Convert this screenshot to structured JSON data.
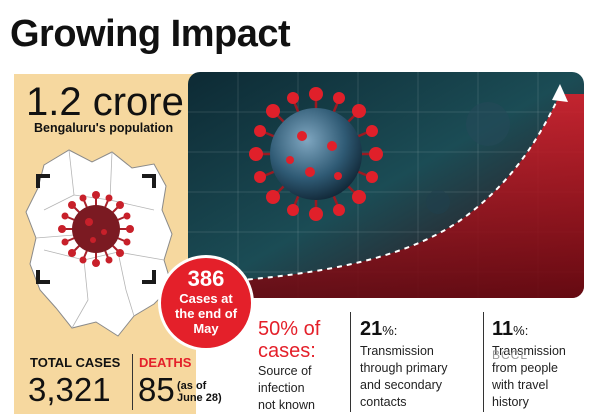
{
  "title": "Growing Impact",
  "population": {
    "value": "1.2 crore",
    "label": "Bengaluru's population"
  },
  "badge": {
    "number": "386",
    "text_line1": "Cases at",
    "text_line2": "the end of",
    "text_line3": "May"
  },
  "stats": [
    {
      "percent": "50% of",
      "percent_line2": "cases:",
      "line1": "Source of",
      "line2": "infection",
      "line3": "not known"
    },
    {
      "percent": "21",
      "percent_suffix": "%:",
      "line1": "Transmission",
      "line2": "through primary",
      "line3": "and secondary",
      "line4": "contacts"
    },
    {
      "percent": "11",
      "percent_suffix": "%:",
      "line1": "Transmission",
      "line2": "from people",
      "line3": "with travel",
      "line4": "history"
    }
  ],
  "totals": {
    "cases_label": "TOTAL CASES",
    "cases_value": "3,321",
    "deaths_label": "DEATHS",
    "deaths_value": "85",
    "asof_line1": "(as of",
    "asof_line2": "June 28)"
  },
  "watermark": "BCCL",
  "colors": {
    "accent_red": "#e4202a",
    "beige": "#f6d89f",
    "teal": "#0d3b44"
  }
}
